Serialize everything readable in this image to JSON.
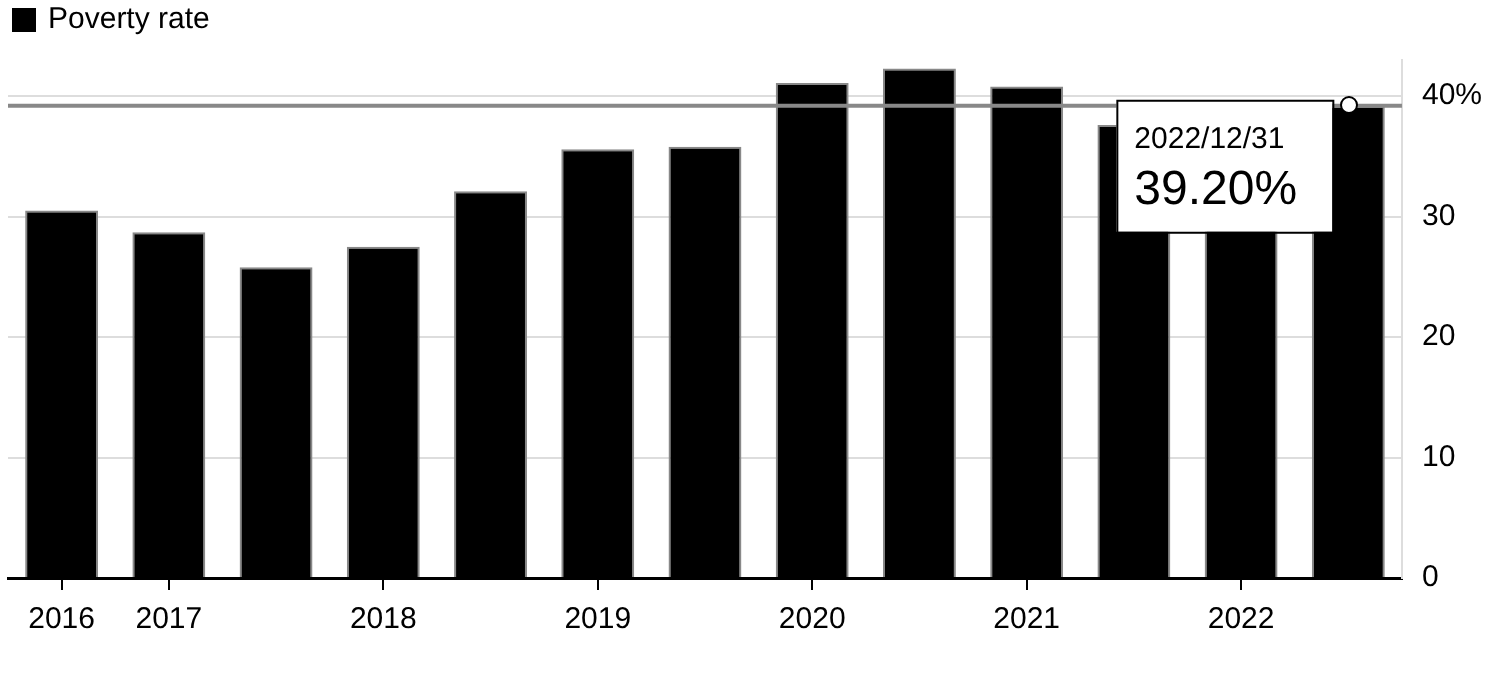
{
  "chart_data": {
    "type": "bar",
    "categories": [
      "2016",
      "2017",
      null,
      "2018",
      null,
      "2019",
      null,
      "2020",
      null,
      "2021",
      null,
      "2022",
      null
    ],
    "series": [
      {
        "name": "Poverty rate",
        "color": "#000000",
        "values": [
          30.5,
          28.7,
          25.8,
          27.5,
          32.1,
          35.6,
          35.8,
          41.1,
          42.3,
          40.8,
          37.6,
          36.5,
          39.2
        ]
      }
    ],
    "ylim": [
      0,
      43
    ],
    "yticks": [
      0,
      10,
      20,
      30,
      {
        "value": 40,
        "label": "40%"
      }
    ],
    "ref_lines": [
      {
        "axis": "y",
        "value": 39.2,
        "color": "#888888"
      }
    ],
    "annotations": [
      {
        "text": "2022/12/31",
        "y": 39.2
      },
      {
        "text": "39.20%",
        "y": 39.2
      }
    ],
    "grid": "y",
    "legend": "top left"
  }
}
